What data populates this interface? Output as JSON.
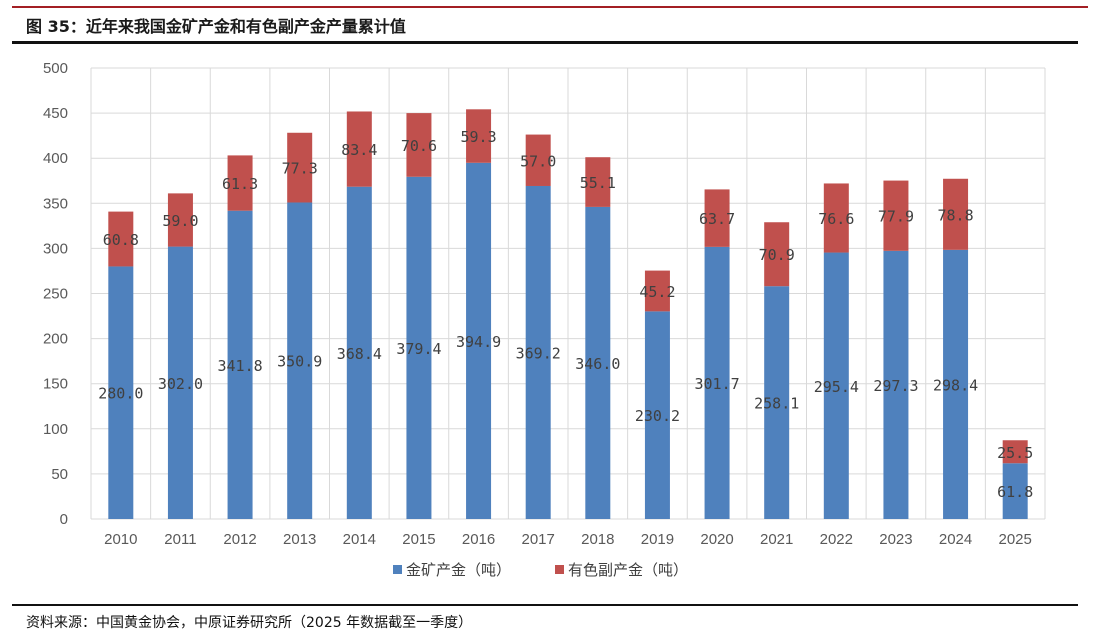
{
  "header": {
    "title": "图 35：近年来我国金矿产金和有色副产金产量累计值"
  },
  "footer": {
    "source": "资料来源：中国黄金协会，中原证券研究所（2025 年数据截至一季度）"
  },
  "colors": {
    "gold_mine": "#4f81bd",
    "byproduct": "#c0504d",
    "rule_red": "#a31f24"
  },
  "chart_data": {
    "type": "bar",
    "stacked": true,
    "title": "",
    "xlabel": "",
    "ylabel": "",
    "ylim": [
      0,
      500
    ],
    "yticks": [
      0,
      50,
      100,
      150,
      200,
      250,
      300,
      350,
      400,
      450,
      500
    ],
    "grid": true,
    "legend_position": "bottom",
    "categories": [
      "2010",
      "2011",
      "2012",
      "2013",
      "2014",
      "2015",
      "2016",
      "2017",
      "2018",
      "2019",
      "2020",
      "2021",
      "2022",
      "2023",
      "2024",
      "2025"
    ],
    "series": [
      {
        "name": "金矿产金（吨）",
        "color": "#4f81bd",
        "values": [
          280.0,
          302.0,
          341.8,
          350.9,
          368.4,
          379.4,
          394.9,
          369.2,
          346.0,
          230.2,
          301.7,
          258.1,
          295.4,
          297.3,
          298.4,
          61.8
        ],
        "labels": [
          "280.0",
          "302.0",
          "341.8",
          "350.9",
          "368.4",
          "379.4",
          "394.9",
          "369.2",
          "346.0",
          "230.2",
          "301.7",
          "258.1",
          "295.4",
          "297.3",
          "298.4",
          "61.8"
        ]
      },
      {
        "name": "有色副产金（吨）",
        "color": "#c0504d",
        "values": [
          60.8,
          59.0,
          61.3,
          77.3,
          83.4,
          70.6,
          59.3,
          57.0,
          55.1,
          45.2,
          63.7,
          70.9,
          76.6,
          77.9,
          78.8,
          25.5
        ],
        "labels": [
          "60.8",
          "59.0",
          "61.3",
          "77.3",
          "83.4",
          "70.6",
          "59.3",
          "57.0",
          "55.1",
          "45.2",
          "63.7",
          "70.9",
          "76.6",
          "77.9",
          "78.8",
          "25.5"
        ]
      }
    ]
  }
}
